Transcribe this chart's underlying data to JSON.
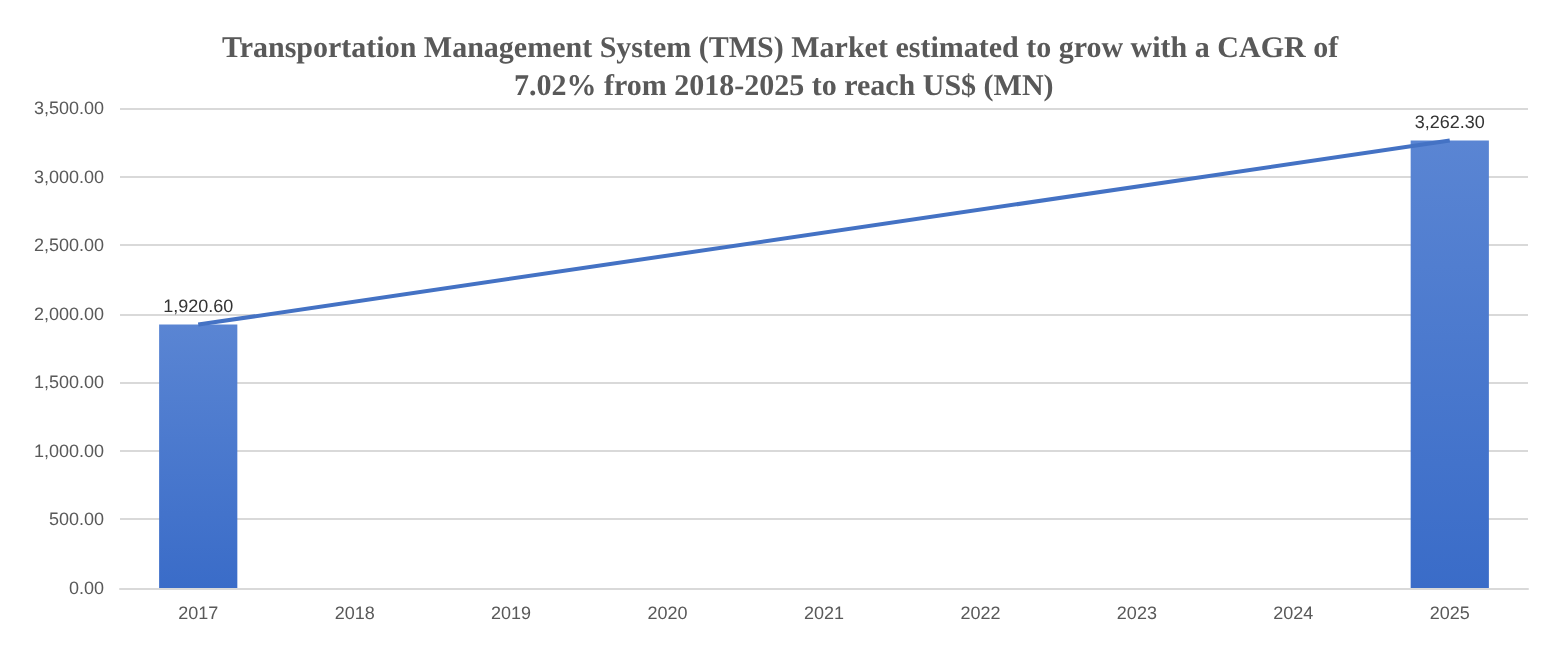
{
  "chart_data": {
    "type": "bar",
    "title": "Transportation Management System (TMS) Market estimated to grow with a CAGR of 7.02% from 2018-2025 to reach US$ (MN)",
    "categories": [
      "2017",
      "2018",
      "2019",
      "2020",
      "2021",
      "2022",
      "2023",
      "2024",
      "2025"
    ],
    "series": [
      {
        "color": "#3a6cc8",
        "values": [
          1920.6,
          null,
          null,
          null,
          null,
          null,
          null,
          null,
          3262.3
        ],
        "value_labels": [
          "1,920.60",
          null,
          null,
          null,
          null,
          null,
          null,
          null,
          "3,262.30"
        ]
      },
      {
        "type": "line",
        "color": "#4472c4",
        "values": [
          1920.6,
          null,
          null,
          null,
          null,
          null,
          null,
          null,
          3262.3
        ]
      }
    ],
    "ylim": [
      0,
      3500
    ],
    "yticks": [
      {
        "value": 0,
        "label": "0.00"
      },
      {
        "value": 500,
        "label": "500.00"
      },
      {
        "value": 1000,
        "label": "1,000.00"
      },
      {
        "value": 1500,
        "label": "1,500.00"
      },
      {
        "value": 2000,
        "label": "2,000.00"
      },
      {
        "value": 2500,
        "label": "2,500.00"
      },
      {
        "value": 3000,
        "label": "3,000.00"
      },
      {
        "value": 3500,
        "label": "3,500.00"
      }
    ],
    "grid": "y",
    "marker": "none",
    "line_style": "solid"
  }
}
